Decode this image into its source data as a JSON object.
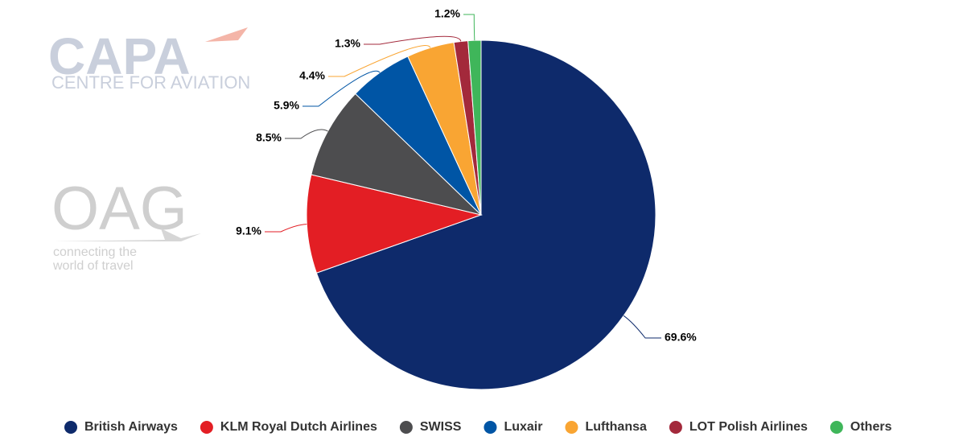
{
  "logos": {
    "capa": "CAPA",
    "capa_sub": "CENTRE FOR AVIATION",
    "oag": "OAG",
    "oag_tag_1": "connecting the",
    "oag_tag_2": "world of travel"
  },
  "chart_data": {
    "type": "pie",
    "categories": [
      "British Airways",
      "KLM Royal Dutch Airlines",
      "SWISS",
      "Luxair",
      "Lufthansa",
      "LOT Polish Airlines",
      "Others"
    ],
    "values": [
      69.6,
      9.1,
      8.5,
      5.9,
      4.4,
      1.3,
      1.2
    ],
    "value_labels": [
      "69.6%",
      "9.1%",
      "8.5%",
      "5.9%",
      "4.4%",
      "1.3%",
      "1.2%"
    ],
    "colors": [
      "#0e2a6b",
      "#e31e24",
      "#4d4d4f",
      "#0055a5",
      "#f9a533",
      "#a3293b",
      "#3fb65a"
    ],
    "legend": "bottom"
  }
}
